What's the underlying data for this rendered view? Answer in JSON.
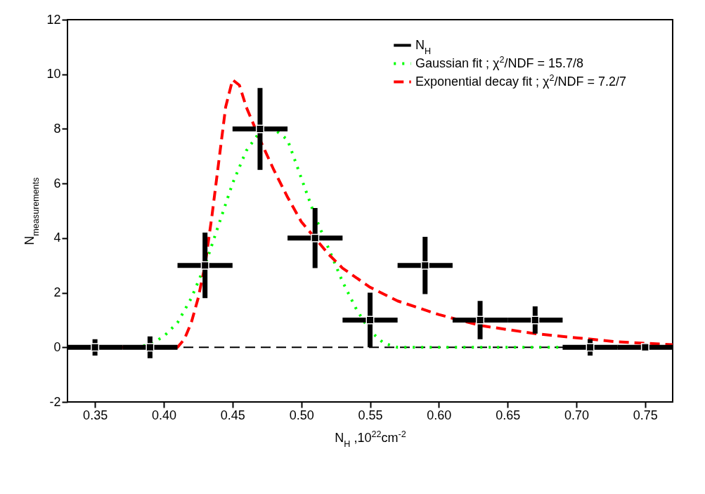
{
  "chart_data": {
    "type": "line",
    "xlabel": "N$_{H}$ ,10$^{22}$cm$^{-2}$",
    "ylabel": "N$_{measurements}$",
    "xlim": [
      0.33,
      0.77
    ],
    "xticks": [
      0.35,
      {
        "value": 0.4,
        "label": "0.40"
      },
      0.45,
      {
        "value": 0.5,
        "label": "0.50"
      },
      0.55,
      {
        "value": 0.6,
        "label": "0.60"
      },
      0.65,
      {
        "value": 0.7,
        "label": "0.70"
      },
      0.75
    ],
    "ylim": [
      -2,
      12
    ],
    "yticks": [
      -2,
      0,
      2,
      4,
      6,
      8,
      10,
      12
    ],
    "grid": false,
    "legend": "top right",
    "ref_lines": [
      {
        "axis": "y",
        "value": 0,
        "color": "#000000",
        "line_style": "dashed"
      }
    ],
    "series": [
      {
        "name": "N$_{H}$",
        "type": "scatter",
        "marker": "square",
        "color": "#000000",
        "x": [
          0.35,
          0.39,
          0.43,
          0.47,
          0.51,
          0.55,
          0.59,
          0.63,
          0.67,
          0.71,
          0.75
        ],
        "values": [
          0,
          0,
          3,
          8,
          4,
          1,
          3,
          1,
          1,
          0,
          0
        ],
        "errors": [
          0.3,
          0.4,
          1.2,
          1.5,
          1.1,
          1,
          1.05,
          0.7,
          0.5,
          0.3,
          0.15
        ],
        "xerrors": [
          0.02,
          0.02,
          0.02,
          0.02,
          0.02,
          0.02,
          0.02,
          0.02,
          0.02,
          0.02,
          0.02
        ]
      },
      {
        "name": "Gaussian fit ; χ$^{2}$/NDF = 15.7/8",
        "color": "#00ff00",
        "line_style": "dotted",
        "x": [
          0.33,
          0.38,
          0.39,
          0.4,
          0.41,
          0.42,
          0.43,
          0.44,
          0.45,
          0.46,
          0.47,
          0.48,
          0.49,
          0.5,
          0.51,
          0.52,
          0.53,
          0.54,
          0.55,
          0.56,
          0.57,
          0.77
        ],
        "values": [
          0,
          0,
          0.1,
          0.4,
          0.9,
          1.8,
          3,
          4.5,
          6,
          7.2,
          7.9,
          8,
          7.6,
          6.2,
          4.8,
          3.6,
          2.4,
          1.4,
          0.6,
          0.15,
          0,
          0
        ]
      },
      {
        "name": "Exponential decay fit ; χ$^{2}$/NDF = 7.2/7",
        "color": "#ff0000",
        "line_style": "dashed",
        "x": [
          0.33,
          0.41,
          0.415,
          0.42,
          0.425,
          0.43,
          0.435,
          0.44,
          0.445,
          0.45,
          0.455,
          0.46,
          0.47,
          0.48,
          0.49,
          0.5,
          0.51,
          0.52,
          0.53,
          0.55,
          0.57,
          0.6,
          0.63,
          0.67,
          0.7,
          0.73,
          0.77
        ],
        "values": [
          0,
          0,
          0.3,
          0.9,
          1.8,
          3,
          4.8,
          6.8,
          8.8,
          9.8,
          9.6,
          8.8,
          7.6,
          6.5,
          5.5,
          4.6,
          4,
          3.4,
          2.9,
          2.2,
          1.7,
          1.2,
          0.8,
          0.5,
          0.35,
          0.2,
          0.1
        ]
      }
    ]
  }
}
